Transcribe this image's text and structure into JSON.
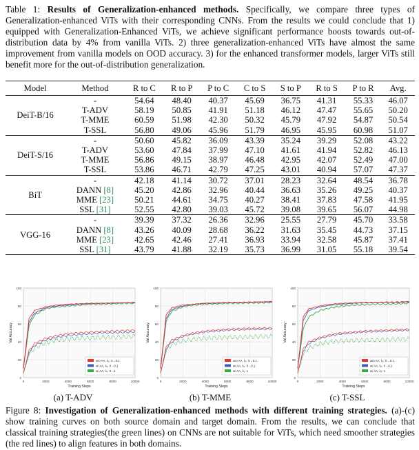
{
  "table": {
    "label": "Table 1:",
    "title": "Results of Generalization-enhanced methods.",
    "caption": "Specifically, we compare three types of Generalization-enhanced ViTs with their corresponding CNNs. From the results we could conclude that 1) equipped with Generalization-Enhanced ViTs, we achieve significant performance boosts towards out-of-distribution data by 4% from vanilla ViTs. 2) three generalization-enhanced ViTs have almost the same improvement from vanilla models on OOD accuracy. 3) for the enhanced transformer models, larger ViTs still benefit more for the out-of-distribution generalization.",
    "headers": [
      "Model",
      "Method",
      "R to C",
      "R to P",
      "P to C",
      "C to S",
      "S to P",
      "R to S",
      "P to R",
      "Avg."
    ],
    "groups": [
      {
        "model": "DeiT-B/16",
        "rows": [
          {
            "method": "-",
            "ref": "",
            "values": [
              "54.64",
              "48.40",
              "40.37",
              "45.69",
              "36.75",
              "41.31",
              "55.33",
              "46.07"
            ],
            "bold": []
          },
          {
            "method": "T-ADV",
            "ref": "",
            "values": [
              "58.19",
              "50.85",
              "41.91",
              "51.18",
              "46.12",
              "47.47",
              "55.65",
              "50.20"
            ],
            "bold": []
          },
          {
            "method": "T-MME",
            "ref": "",
            "values": [
              "60.59",
              "51.98",
              "42.30",
              "50.32",
              "45.79",
              "47.92",
              "54.87",
              "50.54"
            ],
            "bold": [
              0,
              1,
              5
            ]
          },
          {
            "method": "T-SSL",
            "ref": "",
            "values": [
              "56.80",
              "49.06",
              "45.96",
              "51.79",
              "46.95",
              "45.95",
              "60.98",
              "51.07"
            ],
            "bold": [
              2,
              3,
              4,
              6,
              7
            ]
          }
        ]
      },
      {
        "model": "DeiT-S/16",
        "rows": [
          {
            "method": "-",
            "ref": "",
            "values": [
              "50.60",
              "45.82",
              "36.09",
              "43.39",
              "35.24",
              "39.29",
              "52.08",
              "43.22"
            ],
            "bold": []
          },
          {
            "method": "T-ADV",
            "ref": "",
            "values": [
              "53.60",
              "47.84",
              "37.99",
              "47.10",
              "41.61",
              "41.94",
              "52.82",
              "46.13"
            ],
            "bold": []
          },
          {
            "method": "T-MME",
            "ref": "",
            "values": [
              "56.86",
              "49.15",
              "38.97",
              "46.48",
              "42.95",
              "42.07",
              "52.49",
              "47.00"
            ],
            "bold": [
              0,
              1,
              5
            ]
          },
          {
            "method": "T-SSL",
            "ref": "",
            "values": [
              "53.86",
              "46.71",
              "42.79",
              "47.25",
              "43.01",
              "40.94",
              "57.07",
              "47.37"
            ],
            "bold": [
              2,
              3,
              4,
              6,
              7
            ]
          }
        ]
      },
      {
        "model": "BiT",
        "rows": [
          {
            "method": "-",
            "ref": "",
            "values": [
              "42.18",
              "41.14",
              "30.72",
              "37.01",
              "28.23",
              "32.64",
              "48.54",
              "36.78"
            ],
            "bold": []
          },
          {
            "method": "DANN ",
            "ref": "[8]",
            "values": [
              "45.20",
              "42.86",
              "32.96",
              "40.44",
              "36.63",
              "35.26",
              "49.25",
              "40.37"
            ],
            "bold": []
          },
          {
            "method": "MME ",
            "ref": "[23]",
            "values": [
              "50.21",
              "44.61",
              "34.75",
              "40.27",
              "38.41",
              "37.83",
              "47.58",
              "41.95"
            ],
            "bold": [
              1
            ]
          },
          {
            "method": "SSL ",
            "ref": "[31]",
            "values": [
              "52.55",
              "42.80",
              "39.03",
              "45.72",
              "39.08",
              "39.65",
              "56.07",
              "44.98"
            ],
            "bold": [
              0,
              2,
              3,
              4,
              5,
              6,
              7
            ]
          }
        ]
      },
      {
        "model": "VGG-16",
        "rows": [
          {
            "method": "-",
            "ref": "",
            "values": [
              "39.39",
              "37.32",
              "26.36",
              "32.96",
              "25.55",
              "27.79",
              "45.70",
              "33.58"
            ],
            "bold": []
          },
          {
            "method": "DANN ",
            "ref": "[8]",
            "values": [
              "43.26",
              "40.09",
              "28.68",
              "36.22",
              "31.63",
              "35.45",
              "44.73",
              "37.15"
            ],
            "bold": [
              5
            ]
          },
          {
            "method": "MME ",
            "ref": "[23]",
            "values": [
              "42.65",
              "42.46",
              "27.41",
              "36.93",
              "33.94",
              "32.58",
              "45.87",
              "37.41"
            ],
            "bold": [
              1,
              3,
              6
            ]
          },
          {
            "method": "SSL ",
            "ref": "[31]",
            "values": [
              "43.79",
              "41.88",
              "32.19",
              "35.73",
              "36.99",
              "31.05",
              "55.18",
              "39.54"
            ],
            "bold": [
              0,
              2,
              4,
              7
            ]
          }
        ]
      }
    ]
  },
  "figure": {
    "label": "Figure 8:",
    "title": "Investigation of Generalization-enhanced methods with different training strategies.",
    "caption": "(a)-(c) show training curves on both source domain and target domain. From the results, we can conclude that classical training strategies(the green lines) on CNNs are not suitable for ViTs, which need smoother strategies (the red lines) to align features in both domains.",
    "subcaptions": [
      "(a) T-ADV",
      "(b) T-MME",
      "(c) T-SSL"
    ]
  },
  "chart_data": [
    {
      "type": "line",
      "title": "",
      "xlabel": "Training Steps",
      "ylabel": "Val Accuracy",
      "xlim": [
        0,
        10000
      ],
      "ylim": [
        0,
        100
      ],
      "xticks": [
        "0",
        "2000",
        "4000",
        "6000",
        "8000",
        "10000"
      ],
      "yticks": [
        "0",
        "20",
        "40",
        "60",
        "80",
        "100"
      ],
      "legend": [
        "w/o AA, λ_0: 0→0.1",
        "w/ AA, λ_0: 0→0.1",
        "w/ AA, λ_0: 0→1"
      ],
      "legend_labels": [
        "w/o AA, λ₀: 0→0.1",
        "w/ AA, λ₀: 0→0.1",
        "w/ AA, λ₀: 0→1"
      ],
      "colors": [
        "#e8322b",
        "#3a62b8",
        "#3aa845"
      ],
      "x": [
        0,
        500,
        1000,
        2000,
        3000,
        4000,
        5000,
        6000,
        7000,
        8000,
        9000,
        10000
      ],
      "series": [
        {
          "name": "red source",
          "values": [
            10,
            66,
            75,
            79,
            81,
            82,
            82.5,
            83,
            83,
            83.5,
            83.5,
            84
          ]
        },
        {
          "name": "blue source",
          "values": [
            10,
            62,
            72,
            78,
            80,
            81,
            82,
            82.5,
            83,
            83,
            83.5,
            83.5
          ]
        },
        {
          "name": "green source",
          "values": [
            10,
            58,
            70,
            77,
            79,
            80,
            81,
            82,
            82,
            82.5,
            83,
            83
          ]
        },
        {
          "name": "red target",
          "values": [
            5,
            30,
            38,
            44,
            47,
            49,
            50,
            51,
            51.5,
            52,
            52.5,
            53
          ]
        },
        {
          "name": "blue target",
          "values": [
            5,
            28,
            36,
            42,
            45,
            47,
            48,
            49,
            50,
            50,
            50.5,
            51
          ]
        },
        {
          "name": "green target",
          "values": [
            5,
            26,
            33,
            39,
            42,
            43,
            44,
            44,
            45,
            45,
            45.5,
            46
          ]
        }
      ]
    },
    {
      "type": "line",
      "title": "",
      "xlabel": "Training Steps",
      "ylabel": "Val Accuracy",
      "xlim": [
        0,
        10000
      ],
      "ylim": [
        0,
        100
      ],
      "xticks": [
        "0",
        "2000",
        "4000",
        "6000",
        "8000",
        "10000"
      ],
      "yticks": [
        "0",
        "20",
        "40",
        "60",
        "80",
        "100"
      ],
      "legend": [
        "w/o AA, λ_0: 0→0.1",
        "w/ AA, λ_0: 0→0.1",
        "w/ AA, λ_0: 1"
      ],
      "legend_labels": [
        "w/o AA, λ₀: 0→0.1",
        "w/ AA, λ₀: 0→0.1",
        "w/ AA, λ₀: 1"
      ],
      "colors": [
        "#e8322b",
        "#3a62b8",
        "#3aa845"
      ],
      "x": [
        0,
        500,
        1000,
        2000,
        3000,
        4000,
        5000,
        6000,
        7000,
        8000,
        9000,
        10000
      ],
      "series": [
        {
          "name": "red source",
          "values": [
            10,
            70,
            78,
            81,
            82,
            83,
            83.5,
            84,
            84,
            84.5,
            84.5,
            85
          ]
        },
        {
          "name": "blue source",
          "values": [
            10,
            66,
            76,
            80,
            82,
            83,
            83,
            83.5,
            84,
            84,
            84.5,
            84.5
          ]
        },
        {
          "name": "green source",
          "values": [
            10,
            63,
            74,
            79,
            81,
            82,
            82.5,
            83,
            83,
            83.5,
            83.5,
            84
          ]
        },
        {
          "name": "red target",
          "values": [
            5,
            34,
            42,
            47,
            50,
            52,
            53,
            54,
            54.5,
            55,
            55,
            55.5
          ]
        },
        {
          "name": "blue target",
          "values": [
            5,
            32,
            40,
            46,
            49,
            51,
            52,
            53,
            53.5,
            54,
            54,
            54.5
          ]
        },
        {
          "name": "green target",
          "values": [
            5,
            30,
            37,
            41,
            43,
            44,
            44.5,
            45,
            45,
            45.5,
            46,
            46
          ]
        }
      ]
    },
    {
      "type": "line",
      "title": "",
      "xlabel": "Training Steps",
      "ylabel": "Val Accuracy",
      "xlim": [
        0,
        10000
      ],
      "ylim": [
        0,
        100
      ],
      "xticks": [
        "0",
        "2000",
        "4000",
        "6000",
        "8000",
        "10000"
      ],
      "yticks": [
        "0",
        "20",
        "40",
        "60",
        "80",
        "100"
      ],
      "legend": [
        "w/o AA, λ_0: 0→0.1",
        "w/ AA, λ_0: 0→0.1",
        "w/ AA, λ_0: 1"
      ],
      "legend_labels": [
        "w/o AA, λ₀: 0→0.1",
        "w/ AA, λ₀: 0→0.1",
        "w/ AA, λ₀: 1"
      ],
      "colors": [
        "#e8322b",
        "#3a62b8",
        "#3aa845"
      ],
      "x": [
        0,
        500,
        1000,
        2000,
        3000,
        4000,
        5000,
        6000,
        7000,
        8000,
        9000,
        10000
      ],
      "series": [
        {
          "name": "red source",
          "values": [
            10,
            68,
            77,
            80,
            82,
            83,
            83.5,
            84,
            84,
            84.5,
            84.5,
            85
          ]
        },
        {
          "name": "blue source",
          "values": [
            10,
            64,
            75,
            79,
            81,
            82,
            83,
            83.5,
            84,
            84,
            84,
            84.5
          ]
        },
        {
          "name": "green source",
          "values": [
            10,
            55,
            68,
            75,
            78,
            80,
            81,
            81.5,
            82,
            82,
            82.5,
            83
          ]
        },
        {
          "name": "red target",
          "values": [
            5,
            32,
            40,
            45,
            48,
            50,
            51,
            52,
            52.5,
            53,
            53.5,
            54
          ]
        },
        {
          "name": "blue target",
          "values": [
            5,
            30,
            38,
            44,
            47,
            49,
            50,
            51,
            51.5,
            52,
            52.5,
            53
          ]
        },
        {
          "name": "green target",
          "values": [
            5,
            26,
            33,
            38,
            40,
            41,
            41.5,
            42,
            42,
            42.5,
            43,
            43
          ]
        }
      ]
    }
  ]
}
